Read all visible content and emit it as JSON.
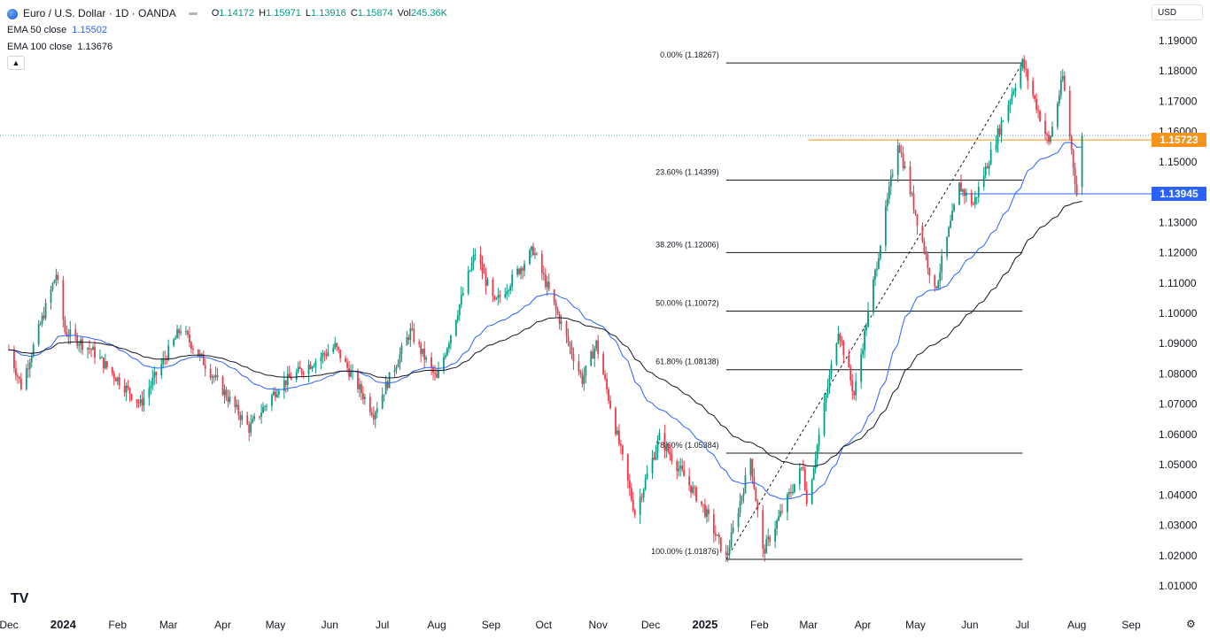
{
  "header": {
    "symbol_title": "Euro / U.S. Dollar · 1D · OANDA",
    "ohlc": {
      "o_label": "O",
      "o": "1.14172",
      "h_label": "H",
      "h": "1.15971",
      "l_label": "L",
      "l": "1.13916",
      "c_label": "C",
      "c": "1.15874",
      "vol_label": "Vol",
      "vol": "245.36K"
    },
    "indicators": [
      {
        "label": "EMA 50 close",
        "value": "1.15502"
      },
      {
        "label": "EMA 100 close",
        "value": "1.13676"
      }
    ],
    "collapse_icon": "chevron-up-icon"
  },
  "currency_selector": {
    "value": "USD"
  },
  "price_tags": [
    {
      "value": "1.15723",
      "color": "#f7931a"
    },
    {
      "value": "1.13945",
      "color": "#2962ff"
    }
  ],
  "colors": {
    "up": "#089981",
    "down": "#f23645",
    "ema50": "#2962ff",
    "ema100": "#131722",
    "resistance": "#f7931a",
    "support": "#2962ff",
    "last_price_line": "#5b9cf6"
  },
  "footer": {
    "logo": "TV",
    "settings_icon": "gear-icon"
  },
  "chart_data": {
    "type": "candlestick",
    "title": "Euro / U.S. Dollar · 1D · OANDA",
    "y_ticks": [
      "1.19000",
      "1.18000",
      "1.17000",
      "1.16000",
      "1.15000",
      "1.13000",
      "1.12000",
      "1.11000",
      "1.10000",
      "1.09000",
      "1.08000",
      "1.07000",
      "1.06000",
      "1.05000",
      "1.04000",
      "1.03000",
      "1.02000",
      "1.01000"
    ],
    "ylim": [
      1.005,
      1.195
    ],
    "x_ticks": [
      "Dec",
      "2024",
      "Feb",
      "Mar",
      "Apr",
      "May",
      "Jun",
      "Jul",
      "Aug",
      "Sep",
      "Oct",
      "Nov",
      "Dec",
      "2025",
      "Feb",
      "Mar",
      "Apr",
      "May",
      "Jun",
      "Jul",
      "Aug",
      "Sep"
    ],
    "x_tick_dates": [
      "2023-12-01",
      "2024-01-01",
      "2024-02-01",
      "2024-03-01",
      "2024-04-01",
      "2024-05-01",
      "2024-06-01",
      "2024-07-01",
      "2024-08-01",
      "2024-09-01",
      "2024-10-01",
      "2024-11-01",
      "2024-12-01",
      "2025-01-01",
      "2025-02-01",
      "2025-03-01",
      "2025-04-01",
      "2025-05-01",
      "2025-06-01",
      "2025-07-01",
      "2025-08-01",
      "2025-09-01"
    ],
    "price_path": [
      [
        "2023-12-01",
        1.088
      ],
      [
        "2023-12-08",
        1.076
      ],
      [
        "2023-12-28",
        1.113
      ],
      [
        "2024-01-02",
        1.094
      ],
      [
        "2024-01-17",
        1.088
      ],
      [
        "2024-02-14",
        1.07
      ],
      [
        "2024-03-08",
        1.095
      ],
      [
        "2024-04-16",
        1.062
      ],
      [
        "2024-05-03",
        1.076
      ],
      [
        "2024-06-04",
        1.089
      ],
      [
        "2024-06-26",
        1.067
      ],
      [
        "2024-07-17",
        1.094
      ],
      [
        "2024-08-01",
        1.078
      ],
      [
        "2024-08-23",
        1.12
      ],
      [
        "2024-09-03",
        1.103
      ],
      [
        "2024-09-25",
        1.121
      ],
      [
        "2024-10-23",
        1.078
      ],
      [
        "2024-10-31",
        1.09
      ],
      [
        "2024-11-22",
        1.034
      ],
      [
        "2024-12-06",
        1.059
      ],
      [
        "2024-12-31",
        1.036
      ],
      [
        "2025-01-13",
        1.019
      ],
      [
        "2025-01-27",
        1.052
      ],
      [
        "2025-02-03",
        1.021
      ],
      [
        "2025-02-26",
        1.05
      ],
      [
        "2025-02-28",
        1.037
      ],
      [
        "2025-03-18",
        1.095
      ],
      [
        "2025-03-27",
        1.073
      ],
      [
        "2025-04-21",
        1.157
      ],
      [
        "2025-05-12",
        1.107
      ],
      [
        "2025-05-26",
        1.142
      ],
      [
        "2025-06-03",
        1.136
      ],
      [
        "2025-07-01",
        1.1827
      ],
      [
        "2025-07-16",
        1.156
      ],
      [
        "2025-07-24",
        1.178
      ],
      [
        "2025-08-01",
        1.1392
      ],
      [
        "2025-08-04",
        1.1587
      ]
    ],
    "last_candle": {
      "date": "2025-08-04",
      "open": 1.14172,
      "high": 1.15971,
      "low": 1.13916,
      "close": 1.15874
    },
    "series": [
      {
        "name": "EMA 50 close",
        "color": "#2962ff",
        "last": 1.15502
      },
      {
        "name": "EMA 100 close",
        "color": "#131722",
        "last": 1.13676
      }
    ],
    "fibonacci": {
      "start": {
        "date": "2025-01-13",
        "price": 1.01876
      },
      "end": {
        "date": "2025-07-01",
        "price": 1.18267
      },
      "levels": [
        {
          "label": "0.00% (1.18267)",
          "price": 1.18267
        },
        {
          "label": "23.60% (1.14399)",
          "price": 1.14399
        },
        {
          "label": "38.20% (1.12006)",
          "price": 1.12006
        },
        {
          "label": "50.00% (1.10072)",
          "price": 1.10072
        },
        {
          "label": "61.80% (1.08138)",
          "price": 1.08138
        },
        {
          "label": "78.60% (1.05384)",
          "price": 1.05384
        },
        {
          "label": "100.00% (1.01876)",
          "price": 1.01876
        }
      ]
    },
    "horizontal_lines": [
      {
        "price": 1.15723,
        "color": "#f7931a",
        "from": "2025-03-01"
      },
      {
        "price": 1.13945,
        "color": "#2962ff",
        "from": "2025-05-26"
      }
    ],
    "last_price_line": 1.15874,
    "grid": false
  }
}
